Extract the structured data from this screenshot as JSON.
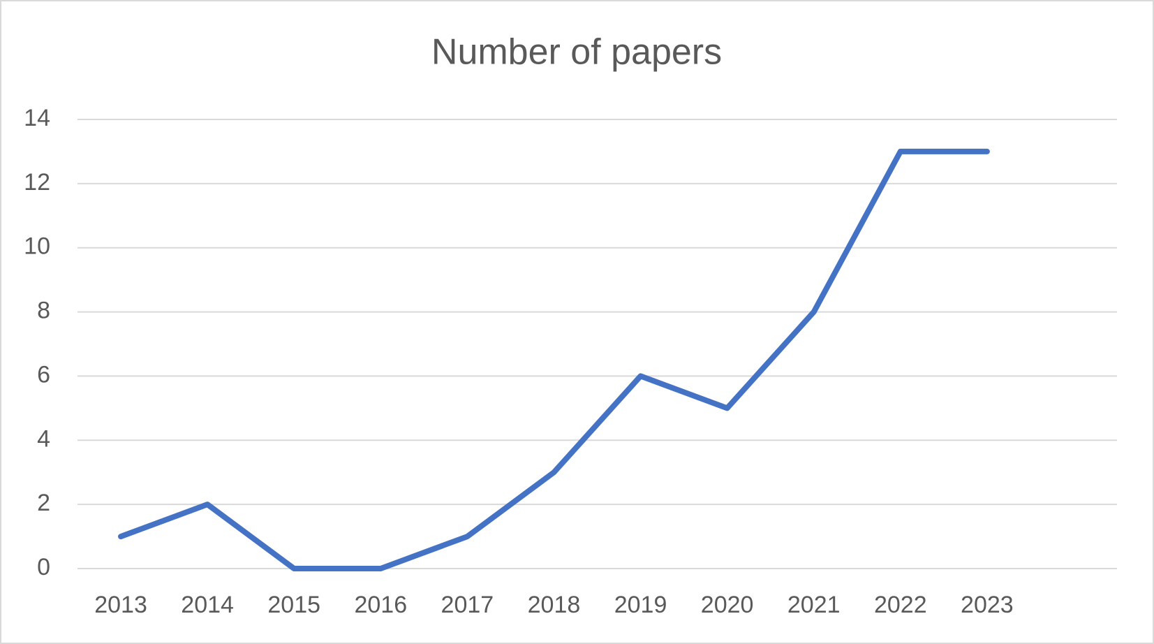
{
  "chart_data": {
    "type": "line",
    "title": "Number of papers",
    "categories": [
      "2013",
      "2014",
      "2015",
      "2016",
      "2017",
      "2018",
      "2019",
      "2020",
      "2021",
      "2022",
      "2023",
      null
    ],
    "values": [
      1,
      2,
      0,
      0,
      1,
      3,
      6,
      5,
      8,
      13,
      13,
      null
    ],
    "color": "#4472c4",
    "ylim": [
      0,
      14
    ],
    "yticks": [
      0,
      2,
      4,
      6,
      8,
      10,
      12,
      14
    ],
    "grid": true
  }
}
